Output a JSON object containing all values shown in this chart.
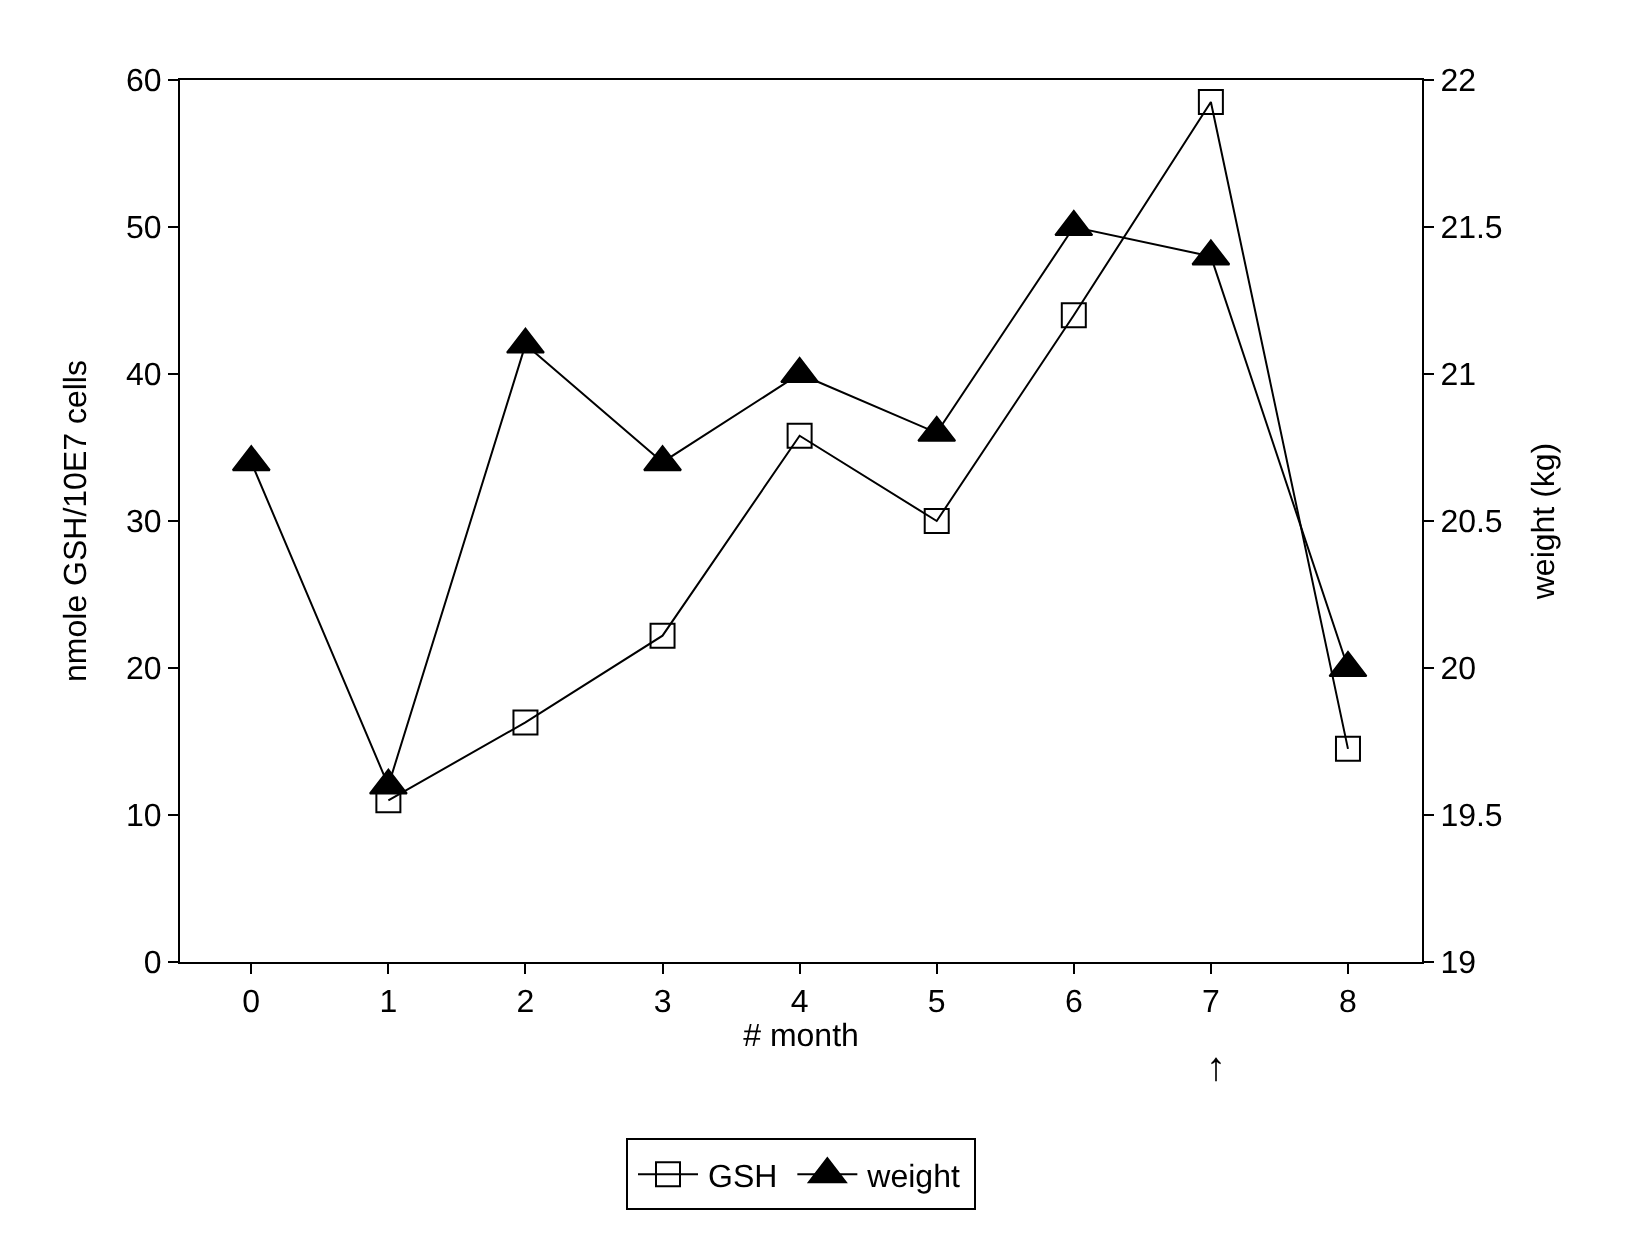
{
  "chart_data": {
    "type": "line",
    "xlabel": "# month",
    "ylabel": "nmole GSH/10E7 cells",
    "y2label": "weight (kg)",
    "x": [
      0,
      1,
      2,
      3,
      4,
      5,
      6,
      7,
      8
    ],
    "xlim": [
      -0.52,
      8.54
    ],
    "xticks": [
      0,
      1,
      2,
      3,
      4,
      5,
      6,
      7,
      8
    ],
    "ylim": [
      0,
      60
    ],
    "yticks": [
      0,
      10,
      20,
      30,
      40,
      50,
      60
    ],
    "y2lim": [
      19,
      22
    ],
    "y2ticks": [
      19,
      19.5,
      20,
      20.5,
      21,
      21.5,
      22
    ],
    "series": [
      {
        "name": "GSH",
        "color": "#000000",
        "marker": "square",
        "values": [
          null,
          11,
          16.3,
          22.2,
          35.8,
          30,
          44,
          58.5,
          14.5
        ]
      },
      {
        "name": "weight",
        "color": "#000000",
        "marker": "triangle",
        "axis": "y2",
        "values": [
          20.7,
          19.6,
          21.1,
          20.7,
          21.0,
          20.8,
          21.5,
          21.4,
          20.0
        ]
      }
    ],
    "annotations": [
      "↑"
    ],
    "legend": "bottom",
    "line_style": "solid"
  }
}
